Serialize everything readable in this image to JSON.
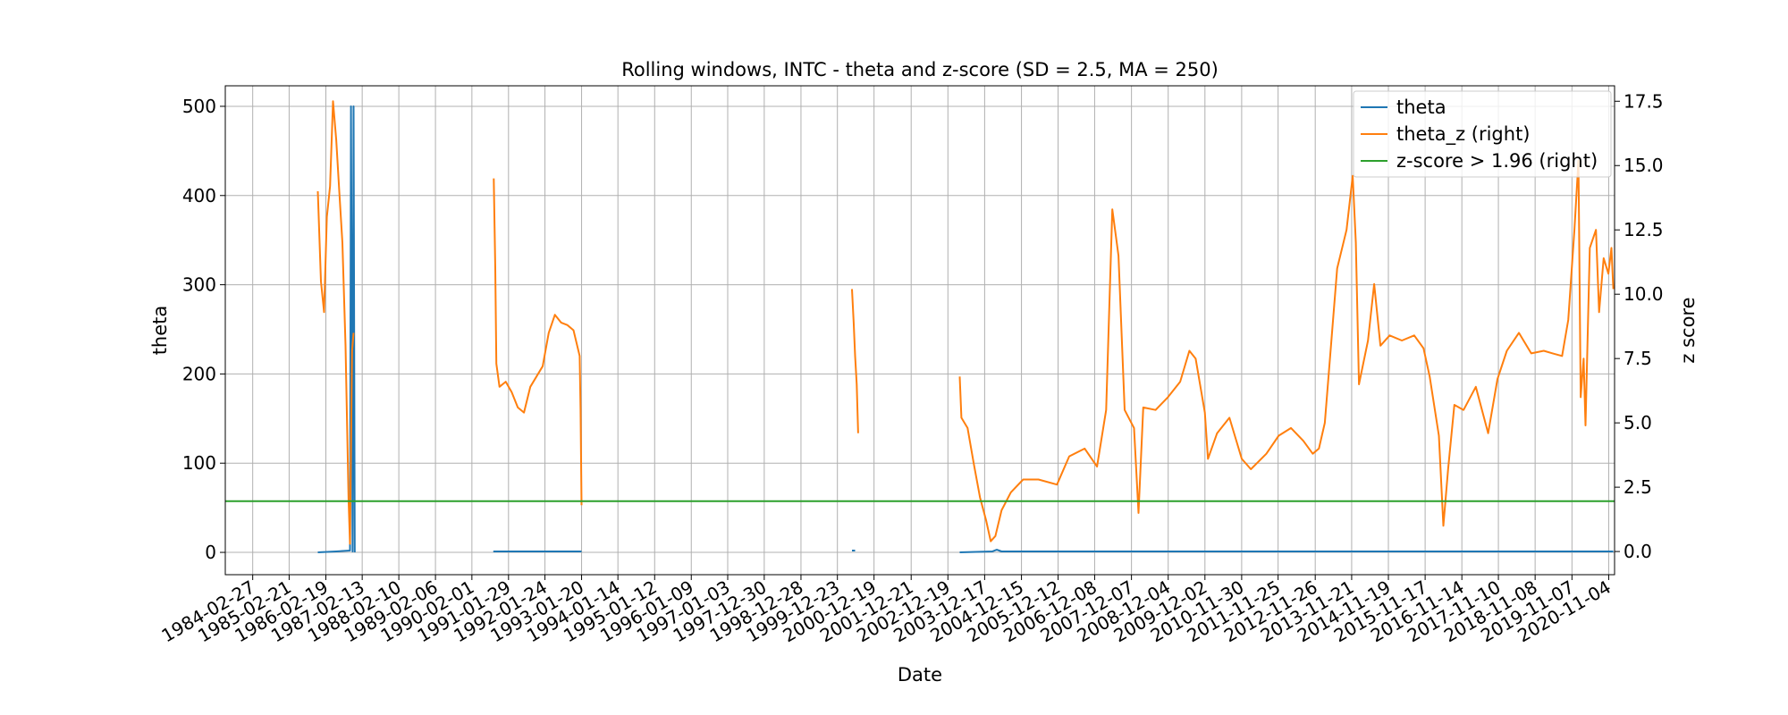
{
  "chart_data": {
    "type": "line",
    "title": "Rolling windows, INTC - theta and z-score (SD = 2.5, MA = 250)",
    "xlabel": "Date",
    "ylabel": "theta",
    "ylabel_right": "z score",
    "xlim": [
      "1983-06-01",
      "2021-01-01"
    ],
    "ylim": [
      -25,
      523
    ],
    "ylim_right": [
      -0.9,
      18.1
    ],
    "grid": true,
    "legend_position": "upper right",
    "x_ticks": [
      "1984-02-27",
      "1985-02-21",
      "1986-02-19",
      "1987-02-13",
      "1988-02-10",
      "1989-02-06",
      "1990-02-01",
      "1991-01-29",
      "1992-01-24",
      "1993-01-20",
      "1994-01-14",
      "1995-01-12",
      "1996-01-09",
      "1997-01-03",
      "1997-12-30",
      "1998-12-28",
      "1999-12-23",
      "2000-12-19",
      "2001-12-21",
      "2002-12-19",
      "2003-12-17",
      "2004-12-15",
      "2005-12-12",
      "2006-12-08",
      "2007-12-07",
      "2008-12-04",
      "2009-12-02",
      "2010-11-30",
      "2011-11-25",
      "2012-11-26",
      "2013-11-21",
      "2014-11-19",
      "2015-11-17",
      "2016-11-14",
      "2017-11-10",
      "2018-11-08",
      "2019-11-07",
      "2020-11-04"
    ],
    "y_ticks_left": [
      0,
      100,
      200,
      300,
      400,
      500
    ],
    "y_ticks_left_labels": [
      "0",
      "100",
      "200",
      "300",
      "400",
      "500"
    ],
    "y_ticks_right": [
      0,
      2.5,
      5,
      7.5,
      10,
      12.5,
      15,
      17.5
    ],
    "y_ticks_right_labels": [
      "0.0",
      "2.5",
      "5.0",
      "7.5",
      "10.0",
      "12.5",
      "15.0",
      "17.5"
    ],
    "series": [
      {
        "name": "theta",
        "axis": "left",
        "color": "#1f77b4",
        "segments": [
          [
            [
              "1985-12-01",
              0
            ],
            [
              "1986-06-01",
              1
            ],
            [
              "1986-10-15",
              2
            ],
            [
              "1986-10-25",
              500
            ],
            [
              "1986-11-01",
              300
            ],
            [
              "1986-11-10",
              1
            ],
            [
              "1986-11-20",
              500
            ],
            [
              "1986-12-01",
              0
            ]
          ],
          [
            [
              "1990-09-01",
              1
            ],
            [
              "1991-06-01",
              1
            ],
            [
              "1992-06-01",
              1
            ],
            [
              "1993-01-20",
              1
            ]
          ],
          [
            [
              "2000-05-15",
              2
            ],
            [
              "2000-06-15",
              2
            ]
          ],
          [
            [
              "2003-04-15",
              0
            ],
            [
              "2004-03-01",
              1
            ],
            [
              "2004-04-15",
              3
            ],
            [
              "2004-06-01",
              1
            ],
            [
              "2008-01-01",
              1
            ],
            [
              "2012-01-01",
              1
            ],
            [
              "2016-01-01",
              1
            ],
            [
              "2020-12-20",
              1
            ]
          ]
        ]
      },
      {
        "name": "theta_z (right)",
        "axis": "right",
        "color": "#ff7f0e",
        "segments": [
          [
            [
              "1985-12-01",
              14
            ],
            [
              "1986-01-01",
              10.5
            ],
            [
              "1986-02-01",
              9.3
            ],
            [
              "1986-03-01",
              13
            ],
            [
              "1986-04-01",
              14.2
            ],
            [
              "1986-05-01",
              17.5
            ],
            [
              "1986-06-01",
              16
            ],
            [
              "1986-07-01",
              14
            ],
            [
              "1986-08-01",
              12
            ],
            [
              "1986-09-01",
              8
            ],
            [
              "1986-10-01",
              2
            ],
            [
              "1986-10-15",
              0.3
            ],
            [
              "1986-10-25",
              4
            ],
            [
              "1986-11-05",
              7.8
            ],
            [
              "1986-11-20",
              8.5
            ]
          ],
          [
            [
              "1990-09-05",
              14.5
            ],
            [
              "1990-09-20",
              11
            ],
            [
              "1990-10-01",
              7.3
            ],
            [
              "1990-11-01",
              6.4
            ],
            [
              "1991-01-01",
              6.6
            ],
            [
              "1991-03-01",
              6.2
            ],
            [
              "1991-05-01",
              5.6
            ],
            [
              "1991-07-01",
              5.4
            ],
            [
              "1991-09-01",
              6.4
            ],
            [
              "1991-11-01",
              6.8
            ],
            [
              "1992-01-01",
              7.2
            ],
            [
              "1992-03-01",
              8.5
            ],
            [
              "1992-05-01",
              9.2
            ],
            [
              "1992-07-01",
              8.9
            ],
            [
              "1992-09-01",
              8.8
            ],
            [
              "1992-11-01",
              8.6
            ],
            [
              "1993-01-01",
              7.6
            ],
            [
              "1993-01-10",
              5.5
            ],
            [
              "1993-01-20",
              1.8
            ]
          ],
          [
            [
              "2000-05-15",
              10.2
            ],
            [
              "2000-06-01",
              8.9
            ],
            [
              "2000-06-15",
              7.6
            ],
            [
              "2000-07-01",
              6.5
            ],
            [
              "2000-07-15",
              4.6
            ]
          ],
          [
            [
              "2003-04-15",
              6.8
            ],
            [
              "2003-05-01",
              5.2
            ],
            [
              "2003-07-01",
              4.8
            ],
            [
              "2003-09-01",
              3.4
            ],
            [
              "2003-11-01",
              2.1
            ],
            [
              "2004-01-01",
              1.2
            ],
            [
              "2004-02-15",
              0.4
            ],
            [
              "2004-04-01",
              0.6
            ],
            [
              "2004-06-01",
              1.6
            ],
            [
              "2004-09-01",
              2.3
            ],
            [
              "2005-01-01",
              2.8
            ],
            [
              "2005-06-01",
              2.8
            ],
            [
              "2005-12-01",
              2.6
            ],
            [
              "2006-04-01",
              3.7
            ],
            [
              "2006-09-01",
              4.0
            ],
            [
              "2007-01-01",
              3.3
            ],
            [
              "2007-04-01",
              5.5
            ],
            [
              "2007-06-01",
              13.3
            ],
            [
              "2007-08-01",
              11.5
            ],
            [
              "2007-10-01",
              5.5
            ],
            [
              "2008-01-01",
              4.8
            ],
            [
              "2008-02-15",
              1.5
            ],
            [
              "2008-04-01",
              5.6
            ],
            [
              "2008-08-01",
              5.5
            ],
            [
              "2008-12-01",
              6.0
            ],
            [
              "2009-04-01",
              6.6
            ],
            [
              "2009-07-01",
              7.8
            ],
            [
              "2009-09-01",
              7.5
            ],
            [
              "2009-12-01",
              5.4
            ],
            [
              "2010-01-01",
              3.6
            ],
            [
              "2010-04-01",
              4.6
            ],
            [
              "2010-08-01",
              5.2
            ],
            [
              "2010-12-01",
              3.6
            ],
            [
              "2011-03-01",
              3.2
            ],
            [
              "2011-08-01",
              3.8
            ],
            [
              "2011-12-01",
              4.5
            ],
            [
              "2012-04-01",
              4.8
            ],
            [
              "2012-08-01",
              4.3
            ],
            [
              "2012-11-01",
              3.8
            ],
            [
              "2013-01-01",
              4.0
            ],
            [
              "2013-03-01",
              5.0
            ],
            [
              "2013-07-01",
              11.0
            ],
            [
              "2013-10-01",
              12.5
            ],
            [
              "2013-12-01",
              14.6
            ],
            [
              "2014-01-01",
              12.0
            ],
            [
              "2014-02-01",
              6.5
            ],
            [
              "2014-05-01",
              8.2
            ],
            [
              "2014-07-01",
              10.4
            ],
            [
              "2014-09-01",
              8.0
            ],
            [
              "2014-12-01",
              8.4
            ],
            [
              "2015-04-01",
              8.2
            ],
            [
              "2015-08-01",
              8.4
            ],
            [
              "2015-11-01",
              7.9
            ],
            [
              "2016-01-01",
              6.8
            ],
            [
              "2016-04-01",
              4.5
            ],
            [
              "2016-05-15",
              1.0
            ],
            [
              "2016-07-01",
              3.2
            ],
            [
              "2016-09-01",
              5.7
            ],
            [
              "2016-12-01",
              5.5
            ],
            [
              "2017-04-01",
              6.4
            ],
            [
              "2017-08-01",
              4.6
            ],
            [
              "2017-11-01",
              6.7
            ],
            [
              "2018-02-01",
              7.8
            ],
            [
              "2018-06-01",
              8.5
            ],
            [
              "2018-10-01",
              7.7
            ],
            [
              "2019-02-01",
              7.8
            ],
            [
              "2019-05-01",
              7.7
            ],
            [
              "2019-08-01",
              7.6
            ],
            [
              "2019-10-01",
              9.0
            ],
            [
              "2019-12-01",
              12.5
            ],
            [
              "2020-01-10",
              15.2
            ],
            [
              "2020-02-01",
              6.0
            ],
            [
              "2020-03-01",
              7.5
            ],
            [
              "2020-03-20",
              4.9
            ],
            [
              "2020-05-01",
              11.8
            ],
            [
              "2020-07-01",
              12.5
            ],
            [
              "2020-08-01",
              9.3
            ],
            [
              "2020-09-15",
              11.4
            ],
            [
              "2020-11-01",
              10.8
            ],
            [
              "2020-12-01",
              11.8
            ],
            [
              "2020-12-20",
              10.2
            ]
          ]
        ]
      },
      {
        "name": "z-score > 1.96 (right)",
        "axis": "right",
        "color": "#2ca02c",
        "segments": [
          [
            [
              "1983-06-01",
              1.96
            ],
            [
              "2021-01-01",
              1.96
            ]
          ]
        ]
      }
    ]
  }
}
